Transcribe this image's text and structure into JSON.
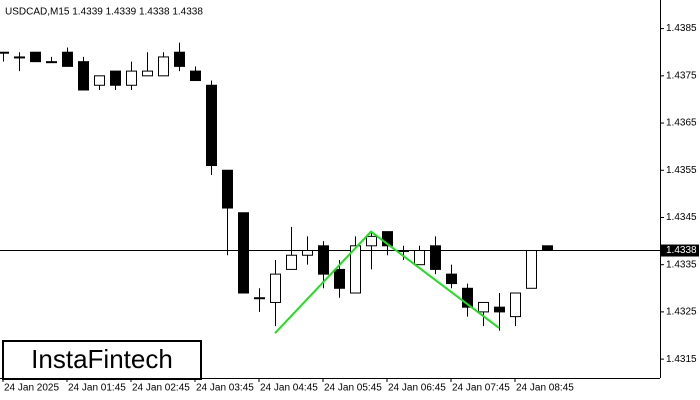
{
  "chart_data": {
    "type": "candlestick",
    "title": "USDCAD,M15  1.4339 1.4339 1.4338 1.4338",
    "categories": [
      "24 Jan 2025",
      null,
      null,
      null,
      "24 Jan 01:45",
      null,
      null,
      null,
      "24 Jan 02:45",
      null,
      null,
      null,
      "24 Jan 03:45",
      null,
      null,
      null,
      "24 Jan 04:45",
      null,
      null,
      null,
      "24 Jan 05:45",
      null,
      null,
      null,
      "24 Jan 06:45",
      null,
      null,
      null,
      "24 Jan 07:45",
      null,
      null,
      null,
      "24 Jan 08:45",
      null,
      null
    ],
    "open": [
      1.438,
      1.4379,
      1.438,
      1.4378,
      1.438,
      1.4378,
      1.4373,
      1.4376,
      1.4373,
      1.4375,
      1.4375,
      1.438,
      1.4376,
      1.4373,
      1.4355,
      1.4346,
      1.4328,
      1.4327,
      1.4334,
      1.4337,
      1.4339,
      1.4334,
      1.4329,
      1.4339,
      1.4342,
      1.4338,
      1.4335,
      1.4339,
      1.4333,
      1.433,
      1.4325,
      1.4326,
      1.4324,
      1.433,
      1.4339
    ],
    "high": [
      1.438,
      1.438,
      1.438,
      1.4379,
      1.4381,
      1.4379,
      1.4375,
      1.4376,
      1.4378,
      1.438,
      1.438,
      1.4382,
      1.4377,
      1.4374,
      1.4355,
      1.4346,
      1.433,
      1.4336,
      1.4343,
      1.4341,
      1.434,
      1.4336,
      1.4341,
      1.4342,
      1.4342,
      1.4339,
      1.4339,
      1.4341,
      1.4335,
      1.4331,
      1.4327,
      1.4329,
      1.4329,
      1.4338,
      1.4339
    ],
    "low": [
      1.4378,
      1.4376,
      1.4378,
      1.4378,
      1.4377,
      1.4372,
      1.4372,
      1.4372,
      1.4372,
      1.4375,
      1.4375,
      1.4376,
      1.4374,
      1.4354,
      1.4337,
      1.4329,
      1.4325,
      1.4322,
      1.4334,
      1.4335,
      1.433,
      1.4328,
      1.4329,
      1.4334,
      1.4337,
      1.4336,
      1.4335,
      1.4333,
      1.433,
      1.4324,
      1.4322,
      1.4321,
      1.4322,
      1.433,
      1.4338
    ],
    "close": [
      1.438,
      1.4379,
      1.4378,
      1.4378,
      1.4377,
      1.4372,
      1.4375,
      1.4373,
      1.4376,
      1.4376,
      1.4379,
      1.4377,
      1.4374,
      1.4356,
      1.4347,
      1.4329,
      1.4328,
      1.4333,
      1.4337,
      1.4338,
      1.4333,
      1.433,
      1.4339,
      1.4341,
      1.4339,
      1.4338,
      1.4338,
      1.4334,
      1.4331,
      1.4326,
      1.4327,
      1.4325,
      1.4329,
      1.4338,
      1.4338
    ],
    "ylim": [
      1.4311,
      1.439
    ],
    "yticks": [
      1.4315,
      1.4325,
      1.4335,
      1.4345,
      1.4355,
      1.4365,
      1.4375,
      1.4385
    ],
    "current_price": 1.4338,
    "pattern": {
      "color": "#22dd22",
      "x": [
        17,
        23,
        31
      ],
      "y": [
        1.43205,
        1.4342,
        1.43216
      ]
    },
    "logo": "InstaFintech"
  }
}
